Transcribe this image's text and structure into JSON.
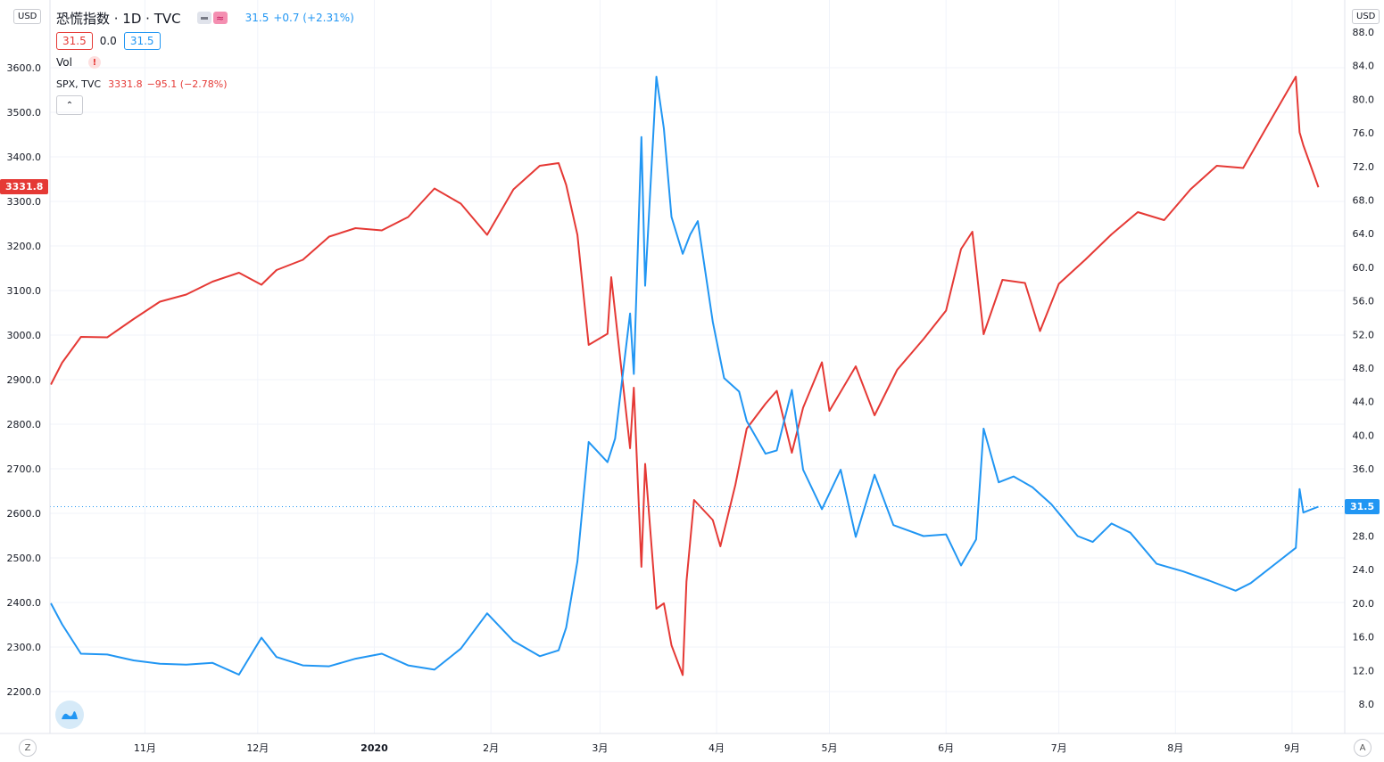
{
  "header": {
    "title": "恐慌指数 · 1D · TVC",
    "compare_icon": "compare-icon",
    "vix_last": "31.5",
    "vix_change": "+0.7 (+2.31%)",
    "ohlc_box1": "31.5",
    "ohlc_middle": "0.0",
    "ohlc_box2": "31.5",
    "vol_label": "Vol",
    "vol_warning": "!",
    "spx_label": "SPX, TVC",
    "spx_value": "3331.8",
    "spx_change": "−95.1 (−2.78%)",
    "collapse_icon": "chevron-up-icon"
  },
  "axes": {
    "left_currency": "USD",
    "right_currency": "USD",
    "left_last_tag": "3331.8",
    "right_last_tag": "31.5",
    "scale_left_button": "Z",
    "scale_right_button": "A",
    "left_ticks": [
      "3600.0",
      "3500.0",
      "3400.0",
      "3300.0",
      "3200.0",
      "3100.0",
      "3000.0",
      "2900.0",
      "2800.0",
      "2700.0",
      "2600.0",
      "2500.0",
      "2400.0",
      "2300.0",
      "2200.0"
    ],
    "right_ticks": [
      "88.0",
      "84.0",
      "80.0",
      "76.0",
      "72.0",
      "68.0",
      "64.0",
      "60.0",
      "56.0",
      "52.0",
      "48.0",
      "44.0",
      "40.0",
      "36.0",
      "32.0",
      "28.0",
      "24.0",
      "20.0",
      "16.0",
      "12.0",
      "8.0"
    ],
    "x_ticks": [
      "11月",
      "12月",
      "2020",
      "2月",
      "3月",
      "4月",
      "5月",
      "6月",
      "7月",
      "8月",
      "9月"
    ]
  },
  "colors": {
    "spx": "#e53935",
    "vix": "#2196f3",
    "grid": "#f0f3fa",
    "axis_border": "#e0e3eb"
  },
  "chart_data": {
    "type": "line",
    "title": "恐慌指数",
    "x_labels": [
      "11月",
      "12月",
      "2020",
      "2月",
      "3月",
      "4月",
      "5月",
      "6月",
      "7月",
      "8月",
      "9月"
    ],
    "series": [
      {
        "name": "SPX",
        "axis": "left",
        "unit": "USD",
        "last": 3331.8,
        "points": [
          [
            "2019-10-07",
            2889
          ],
          [
            "2019-10-10",
            2938
          ],
          [
            "2019-10-15",
            2996
          ],
          [
            "2019-10-22",
            2995
          ],
          [
            "2019-10-29",
            3036
          ],
          [
            "2019-11-05",
            3075
          ],
          [
            "2019-11-12",
            3091
          ],
          [
            "2019-11-19",
            3120
          ],
          [
            "2019-11-26",
            3140
          ],
          [
            "2019-12-02",
            3113
          ],
          [
            "2019-12-06",
            3146
          ],
          [
            "2019-12-13",
            3169
          ],
          [
            "2019-12-20",
            3221
          ],
          [
            "2019-12-27",
            3240
          ],
          [
            "2020-01-03",
            3235
          ],
          [
            "2020-01-10",
            3265
          ],
          [
            "2020-01-17",
            3329
          ],
          [
            "2020-01-24",
            3295
          ],
          [
            "2020-01-31",
            3225
          ],
          [
            "2020-02-07",
            3327
          ],
          [
            "2020-02-14",
            3380
          ],
          [
            "2020-02-19",
            3386
          ],
          [
            "2020-02-21",
            3337
          ],
          [
            "2020-02-24",
            3225
          ],
          [
            "2020-02-27",
            2978
          ],
          [
            "2020-03-03",
            3003
          ],
          [
            "2020-03-04",
            3130
          ],
          [
            "2020-03-09",
            2746
          ],
          [
            "2020-03-10",
            2882
          ],
          [
            "2020-03-12",
            2480
          ],
          [
            "2020-03-13",
            2711
          ],
          [
            "2020-03-16",
            2386
          ],
          [
            "2020-03-18",
            2398
          ],
          [
            "2020-03-20",
            2304
          ],
          [
            "2020-03-23",
            2237
          ],
          [
            "2020-03-24",
            2447
          ],
          [
            "2020-03-26",
            2630
          ],
          [
            "2020-03-31",
            2585
          ],
          [
            "2020-04-02",
            2526
          ],
          [
            "2020-04-06",
            2664
          ],
          [
            "2020-04-09",
            2790
          ],
          [
            "2020-04-14",
            2846
          ],
          [
            "2020-04-17",
            2875
          ],
          [
            "2020-04-21",
            2736
          ],
          [
            "2020-04-24",
            2837
          ],
          [
            "2020-04-29",
            2939
          ],
          [
            "2020-05-01",
            2830
          ],
          [
            "2020-05-08",
            2930
          ],
          [
            "2020-05-13",
            2820
          ],
          [
            "2020-05-19",
            2922
          ],
          [
            "2020-05-26",
            2991
          ],
          [
            "2020-06-01",
            3055
          ],
          [
            "2020-06-05",
            3193
          ],
          [
            "2020-06-08",
            3232
          ],
          [
            "2020-06-11",
            3002
          ],
          [
            "2020-06-16",
            3124
          ],
          [
            "2020-06-22",
            3117
          ],
          [
            "2020-06-26",
            3009
          ],
          [
            "2020-07-01",
            3115
          ],
          [
            "2020-07-08",
            3169
          ],
          [
            "2020-07-15",
            3226
          ],
          [
            "2020-07-22",
            3276
          ],
          [
            "2020-07-29",
            3258
          ],
          [
            "2020-08-05",
            3327
          ],
          [
            "2020-08-12",
            3380
          ],
          [
            "2020-08-19",
            3375
          ],
          [
            "2020-08-26",
            3478
          ],
          [
            "2020-09-02",
            3580
          ],
          [
            "2020-09-03",
            3455
          ],
          [
            "2020-09-04",
            3426
          ],
          [
            "2020-09-08",
            3331.8
          ]
        ]
      },
      {
        "name": "恐慌指数",
        "axis": "right",
        "unit": "USD",
        "last": 31.5,
        "points": [
          [
            "2019-10-07",
            20.0
          ],
          [
            "2019-10-10",
            17.5
          ],
          [
            "2019-10-15",
            14.0
          ],
          [
            "2019-10-22",
            13.9
          ],
          [
            "2019-10-29",
            13.2
          ],
          [
            "2019-11-05",
            12.8
          ],
          [
            "2019-11-12",
            12.7
          ],
          [
            "2019-11-19",
            12.9
          ],
          [
            "2019-11-26",
            11.5
          ],
          [
            "2019-12-02",
            15.9
          ],
          [
            "2019-12-06",
            13.6
          ],
          [
            "2019-12-13",
            12.6
          ],
          [
            "2019-12-20",
            12.5
          ],
          [
            "2019-12-27",
            13.4
          ],
          [
            "2020-01-03",
            14.0
          ],
          [
            "2020-01-10",
            12.6
          ],
          [
            "2020-01-17",
            12.1
          ],
          [
            "2020-01-24",
            14.6
          ],
          [
            "2020-01-31",
            18.8
          ],
          [
            "2020-02-07",
            15.5
          ],
          [
            "2020-02-14",
            13.7
          ],
          [
            "2020-02-19",
            14.4
          ],
          [
            "2020-02-21",
            17.1
          ],
          [
            "2020-02-24",
            25.0
          ],
          [
            "2020-02-27",
            39.2
          ],
          [
            "2020-03-03",
            36.8
          ],
          [
            "2020-03-05",
            39.6
          ],
          [
            "2020-03-09",
            54.5
          ],
          [
            "2020-03-10",
            47.3
          ],
          [
            "2020-03-12",
            75.5
          ],
          [
            "2020-03-13",
            57.8
          ],
          [
            "2020-03-16",
            82.7
          ],
          [
            "2020-03-18",
            76.5
          ],
          [
            "2020-03-20",
            66.0
          ],
          [
            "2020-03-23",
            61.6
          ],
          [
            "2020-03-25",
            63.9
          ],
          [
            "2020-03-27",
            65.5
          ],
          [
            "2020-03-31",
            53.5
          ],
          [
            "2020-04-03",
            46.8
          ],
          [
            "2020-04-07",
            45.2
          ],
          [
            "2020-04-09",
            41.7
          ],
          [
            "2020-04-14",
            37.8
          ],
          [
            "2020-04-17",
            38.2
          ],
          [
            "2020-04-21",
            45.4
          ],
          [
            "2020-04-24",
            35.9
          ],
          [
            "2020-04-29",
            31.2
          ],
          [
            "2020-05-04",
            35.9
          ],
          [
            "2020-05-08",
            27.9
          ],
          [
            "2020-05-13",
            35.3
          ],
          [
            "2020-05-18",
            29.3
          ],
          [
            "2020-05-26",
            28.0
          ],
          [
            "2020-06-01",
            28.2
          ],
          [
            "2020-06-05",
            24.5
          ],
          [
            "2020-06-09",
            27.6
          ],
          [
            "2020-06-11",
            40.8
          ],
          [
            "2020-06-15",
            34.4
          ],
          [
            "2020-06-19",
            35.1
          ],
          [
            "2020-06-24",
            33.8
          ],
          [
            "2020-06-29",
            31.8
          ],
          [
            "2020-07-06",
            28.0
          ],
          [
            "2020-07-10",
            27.3
          ],
          [
            "2020-07-15",
            29.5
          ],
          [
            "2020-07-20",
            28.4
          ],
          [
            "2020-07-27",
            24.7
          ],
          [
            "2020-08-03",
            23.8
          ],
          [
            "2020-08-10",
            22.7
          ],
          [
            "2020-08-17",
            21.5
          ],
          [
            "2020-08-21",
            22.4
          ],
          [
            "2020-08-27",
            24.5
          ],
          [
            "2020-09-02",
            26.6
          ],
          [
            "2020-09-03",
            33.6
          ],
          [
            "2020-09-04",
            30.8
          ],
          [
            "2020-09-08",
            31.5
          ]
        ]
      }
    ],
    "left_axis": {
      "min": 2200,
      "max": 3600
    },
    "right_axis": {
      "min": 8,
      "max": 88
    },
    "grid": true,
    "legend": "top-left"
  }
}
